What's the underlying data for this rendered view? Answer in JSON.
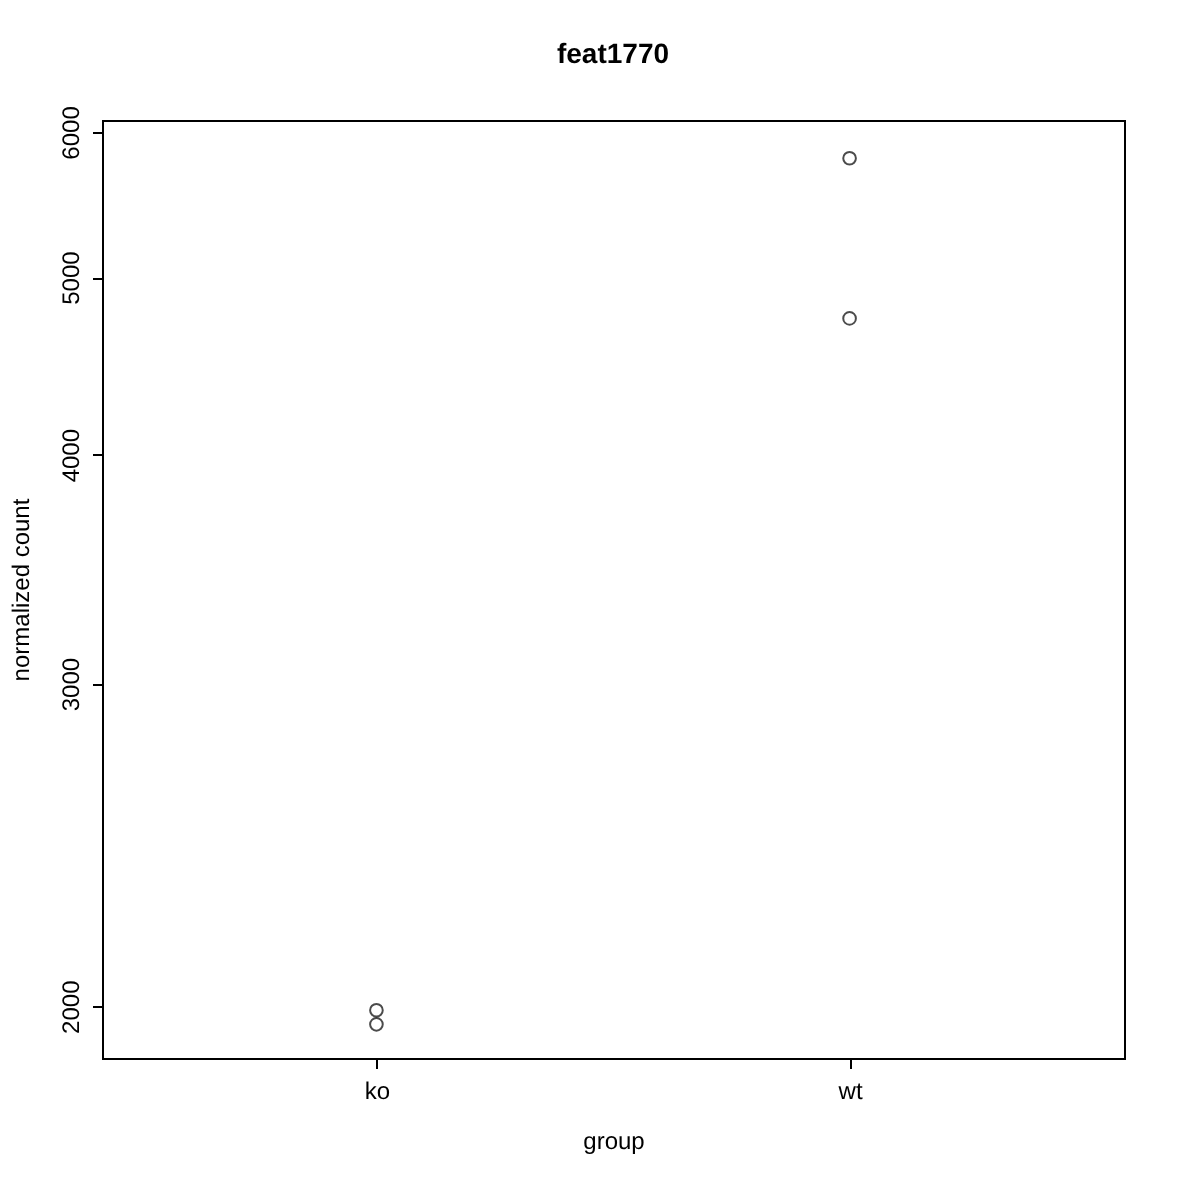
{
  "chart_data": {
    "type": "scatter",
    "title": "feat1770",
    "xlabel": "group",
    "ylabel": "normalized count",
    "series": [
      {
        "color": "#000000",
        "x": [
          "ko",
          "ko",
          "wt",
          "wt"
        ],
        "values": [
          1990,
          1955,
          5805,
          4747
        ]
      }
    ],
    "categories": [
      "ko",
      "wt"
    ],
    "log": "y",
    "ylim": [
      1874,
      6091
    ],
    "yticks": [
      2000,
      3000,
      4000,
      5000,
      6000
    ],
    "marker": "circle",
    "grid": false
  }
}
